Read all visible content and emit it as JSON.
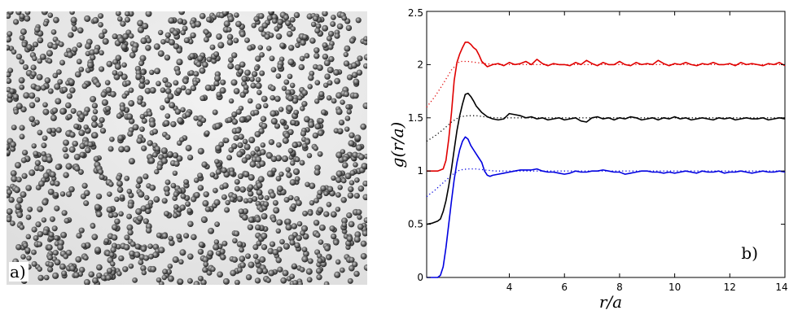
{
  "panel_a": {
    "label": "a)"
  },
  "chart_data": {
    "type": "line",
    "panel_label": "b)",
    "xlabel": "r/a",
    "ylabel": "g(r/a)",
    "xlim": [
      1,
      14
    ],
    "ylim": [
      0,
      2.5
    ],
    "xticks": [
      4,
      6,
      8,
      10,
      12,
      14
    ],
    "xtick_labels": [
      "4",
      "6",
      "8",
      "10",
      "12",
      "14"
    ],
    "yticks": [
      0,
      0.5,
      1,
      1.5,
      2,
      2.5
    ],
    "ytick_labels": [
      "0",
      "0.5",
      "1",
      "1.5",
      "2",
      "2.5"
    ],
    "grid": false,
    "series": [
      {
        "color": "#e00000",
        "style": "solid",
        "x": [
          1.0,
          1.2,
          1.4,
          1.6,
          1.7,
          1.8,
          1.9,
          2.0,
          2.1,
          2.2,
          2.3,
          2.4,
          2.5,
          2.6,
          2.7,
          2.8,
          2.9,
          3.0,
          3.2,
          3.4,
          3.6,
          3.8,
          4.0,
          4.2,
          4.4,
          4.6,
          4.8,
          5.0,
          5.2,
          5.4,
          5.6,
          5.8,
          6.0,
          6.2,
          6.4,
          6.6,
          6.8,
          7.0,
          7.2,
          7.4,
          7.6,
          7.8,
          8.0,
          8.2,
          8.4,
          8.6,
          8.8,
          9.0,
          9.2,
          9.4,
          9.6,
          9.8,
          10.0,
          10.2,
          10.4,
          10.6,
          10.8,
          11.0,
          11.2,
          11.4,
          11.6,
          11.8,
          12.0,
          12.2,
          12.4,
          12.6,
          12.8,
          13.0,
          13.2,
          13.4,
          13.6,
          13.8,
          14.0
        ],
        "y": [
          1.0,
          1.0,
          1.0,
          1.02,
          1.1,
          1.3,
          1.55,
          1.85,
          2.02,
          2.1,
          2.16,
          2.21,
          2.21,
          2.19,
          2.16,
          2.14,
          2.09,
          2.03,
          1.98,
          2.0,
          2.01,
          1.99,
          2.02,
          2.0,
          2.01,
          2.03,
          2.0,
          2.05,
          2.01,
          1.99,
          2.01,
          2.0,
          2.0,
          1.99,
          2.02,
          2.0,
          2.04,
          2.01,
          1.99,
          2.02,
          2.0,
          2.0,
          2.03,
          2.0,
          1.99,
          2.02,
          2.0,
          2.01,
          2.0,
          2.04,
          2.01,
          1.99,
          2.01,
          2.0,
          2.02,
          2.0,
          1.99,
          2.01,
          2.0,
          2.02,
          2.0,
          2.0,
          2.01,
          1.99,
          2.02,
          2.0,
          2.01,
          2.0,
          1.99,
          2.01,
          2.0,
          2.02,
          1.99
        ]
      },
      {
        "color": "#e00000",
        "style": "dotted",
        "x": [
          1.0,
          1.3,
          1.6,
          1.9,
          2.2,
          2.5,
          2.8,
          3.1,
          3.5,
          4.0,
          5.0,
          6.0,
          7.0,
          8.0,
          9.0,
          10.0,
          11.0,
          12.0,
          13.0,
          14.0
        ],
        "y": [
          1.6,
          1.7,
          1.82,
          1.95,
          2.03,
          2.03,
          2.02,
          2.01,
          2.0,
          2.0,
          2.0,
          2.0,
          2.0,
          2.0,
          2.0,
          2.0,
          2.0,
          2.0,
          2.0,
          2.0
        ]
      },
      {
        "color": "#000000",
        "style": "solid",
        "x": [
          1.0,
          1.2,
          1.4,
          1.5,
          1.6,
          1.7,
          1.8,
          1.9,
          2.0,
          2.1,
          2.2,
          2.3,
          2.4,
          2.5,
          2.6,
          2.7,
          2.8,
          2.9,
          3.0,
          3.2,
          3.4,
          3.6,
          3.8,
          4.0,
          4.2,
          4.4,
          4.6,
          4.8,
          5.0,
          5.2,
          5.4,
          5.6,
          5.8,
          6.0,
          6.2,
          6.4,
          6.6,
          6.8,
          7.0,
          7.2,
          7.4,
          7.6,
          7.8,
          8.0,
          8.2,
          8.4,
          8.6,
          8.8,
          9.0,
          9.2,
          9.4,
          9.6,
          9.8,
          10.0,
          10.2,
          10.4,
          10.6,
          10.8,
          11.0,
          11.2,
          11.4,
          11.6,
          11.8,
          12.0,
          12.2,
          12.4,
          12.6,
          12.8,
          13.0,
          13.2,
          13.4,
          13.6,
          13.8,
          14.0
        ],
        "y": [
          0.5,
          0.51,
          0.53,
          0.55,
          0.62,
          0.72,
          0.86,
          1.02,
          1.2,
          1.38,
          1.52,
          1.63,
          1.72,
          1.73,
          1.7,
          1.66,
          1.61,
          1.58,
          1.55,
          1.51,
          1.49,
          1.48,
          1.49,
          1.54,
          1.53,
          1.52,
          1.5,
          1.51,
          1.49,
          1.5,
          1.48,
          1.49,
          1.5,
          1.48,
          1.49,
          1.5,
          1.47,
          1.46,
          1.5,
          1.51,
          1.49,
          1.5,
          1.48,
          1.5,
          1.49,
          1.51,
          1.5,
          1.48,
          1.49,
          1.5,
          1.48,
          1.5,
          1.49,
          1.51,
          1.49,
          1.5,
          1.48,
          1.49,
          1.5,
          1.49,
          1.48,
          1.5,
          1.49,
          1.5,
          1.48,
          1.49,
          1.5,
          1.49,
          1.49,
          1.5,
          1.48,
          1.49,
          1.5,
          1.49
        ]
      },
      {
        "color": "#000000",
        "style": "dotted",
        "x": [
          1.0,
          1.3,
          1.6,
          1.9,
          2.2,
          2.5,
          2.8,
          3.1,
          3.5,
          4.0,
          5.0,
          6.0,
          7.0,
          8.0,
          9.0,
          10.0,
          11.0,
          12.0,
          13.0,
          14.0
        ],
        "y": [
          1.28,
          1.33,
          1.39,
          1.46,
          1.51,
          1.52,
          1.52,
          1.51,
          1.5,
          1.5,
          1.5,
          1.5,
          1.5,
          1.5,
          1.5,
          1.5,
          1.5,
          1.5,
          1.5,
          1.5
        ]
      },
      {
        "color": "#0000e0",
        "style": "solid",
        "x": [
          1.0,
          1.2,
          1.4,
          1.5,
          1.6,
          1.7,
          1.8,
          1.9,
          2.0,
          2.1,
          2.2,
          2.3,
          2.4,
          2.5,
          2.6,
          2.7,
          2.8,
          2.9,
          3.0,
          3.1,
          3.2,
          3.3,
          3.4,
          3.6,
          3.8,
          4.0,
          4.2,
          4.4,
          4.6,
          4.8,
          5.0,
          5.2,
          5.4,
          5.6,
          5.8,
          6.0,
          6.2,
          6.4,
          6.6,
          6.8,
          7.0,
          7.2,
          7.4,
          7.6,
          7.8,
          8.0,
          8.2,
          8.4,
          8.6,
          8.8,
          9.0,
          9.2,
          9.4,
          9.6,
          9.8,
          10.0,
          10.2,
          10.4,
          10.6,
          10.8,
          11.0,
          11.2,
          11.4,
          11.6,
          11.8,
          12.0,
          12.2,
          12.4,
          12.6,
          12.8,
          13.0,
          13.2,
          13.4,
          13.6,
          13.8,
          14.0
        ],
        "y": [
          0.0,
          0.0,
          0.0,
          0.02,
          0.1,
          0.28,
          0.5,
          0.72,
          0.92,
          1.08,
          1.2,
          1.28,
          1.32,
          1.3,
          1.24,
          1.2,
          1.16,
          1.12,
          1.08,
          1.0,
          0.96,
          0.95,
          0.96,
          0.97,
          0.98,
          0.99,
          1.0,
          1.01,
          1.01,
          1.01,
          1.02,
          1.0,
          0.99,
          0.99,
          0.98,
          0.97,
          0.98,
          1.0,
          0.99,
          0.99,
          1.0,
          1.0,
          1.01,
          1.0,
          0.99,
          0.99,
          0.97,
          0.98,
          0.99,
          1.0,
          1.0,
          0.99,
          0.99,
          0.98,
          0.99,
          0.98,
          0.99,
          1.0,
          0.99,
          0.98,
          1.0,
          0.99,
          0.99,
          1.0,
          0.98,
          0.99,
          0.99,
          1.0,
          0.99,
          0.98,
          0.99,
          1.0,
          0.99,
          0.99,
          1.0,
          0.99
        ]
      },
      {
        "color": "#0000e0",
        "style": "dotted",
        "x": [
          1.0,
          1.3,
          1.6,
          1.9,
          2.2,
          2.5,
          2.8,
          3.1,
          3.5,
          4.0,
          5.0,
          6.0,
          7.0,
          8.0,
          9.0,
          10.0,
          11.0,
          12.0,
          13.0,
          14.0
        ],
        "y": [
          0.76,
          0.82,
          0.89,
          0.96,
          1.01,
          1.02,
          1.02,
          1.01,
          1.0,
          1.0,
          1.0,
          1.0,
          1.0,
          1.0,
          1.0,
          1.0,
          1.0,
          1.0,
          1.0,
          1.0
        ]
      }
    ]
  }
}
